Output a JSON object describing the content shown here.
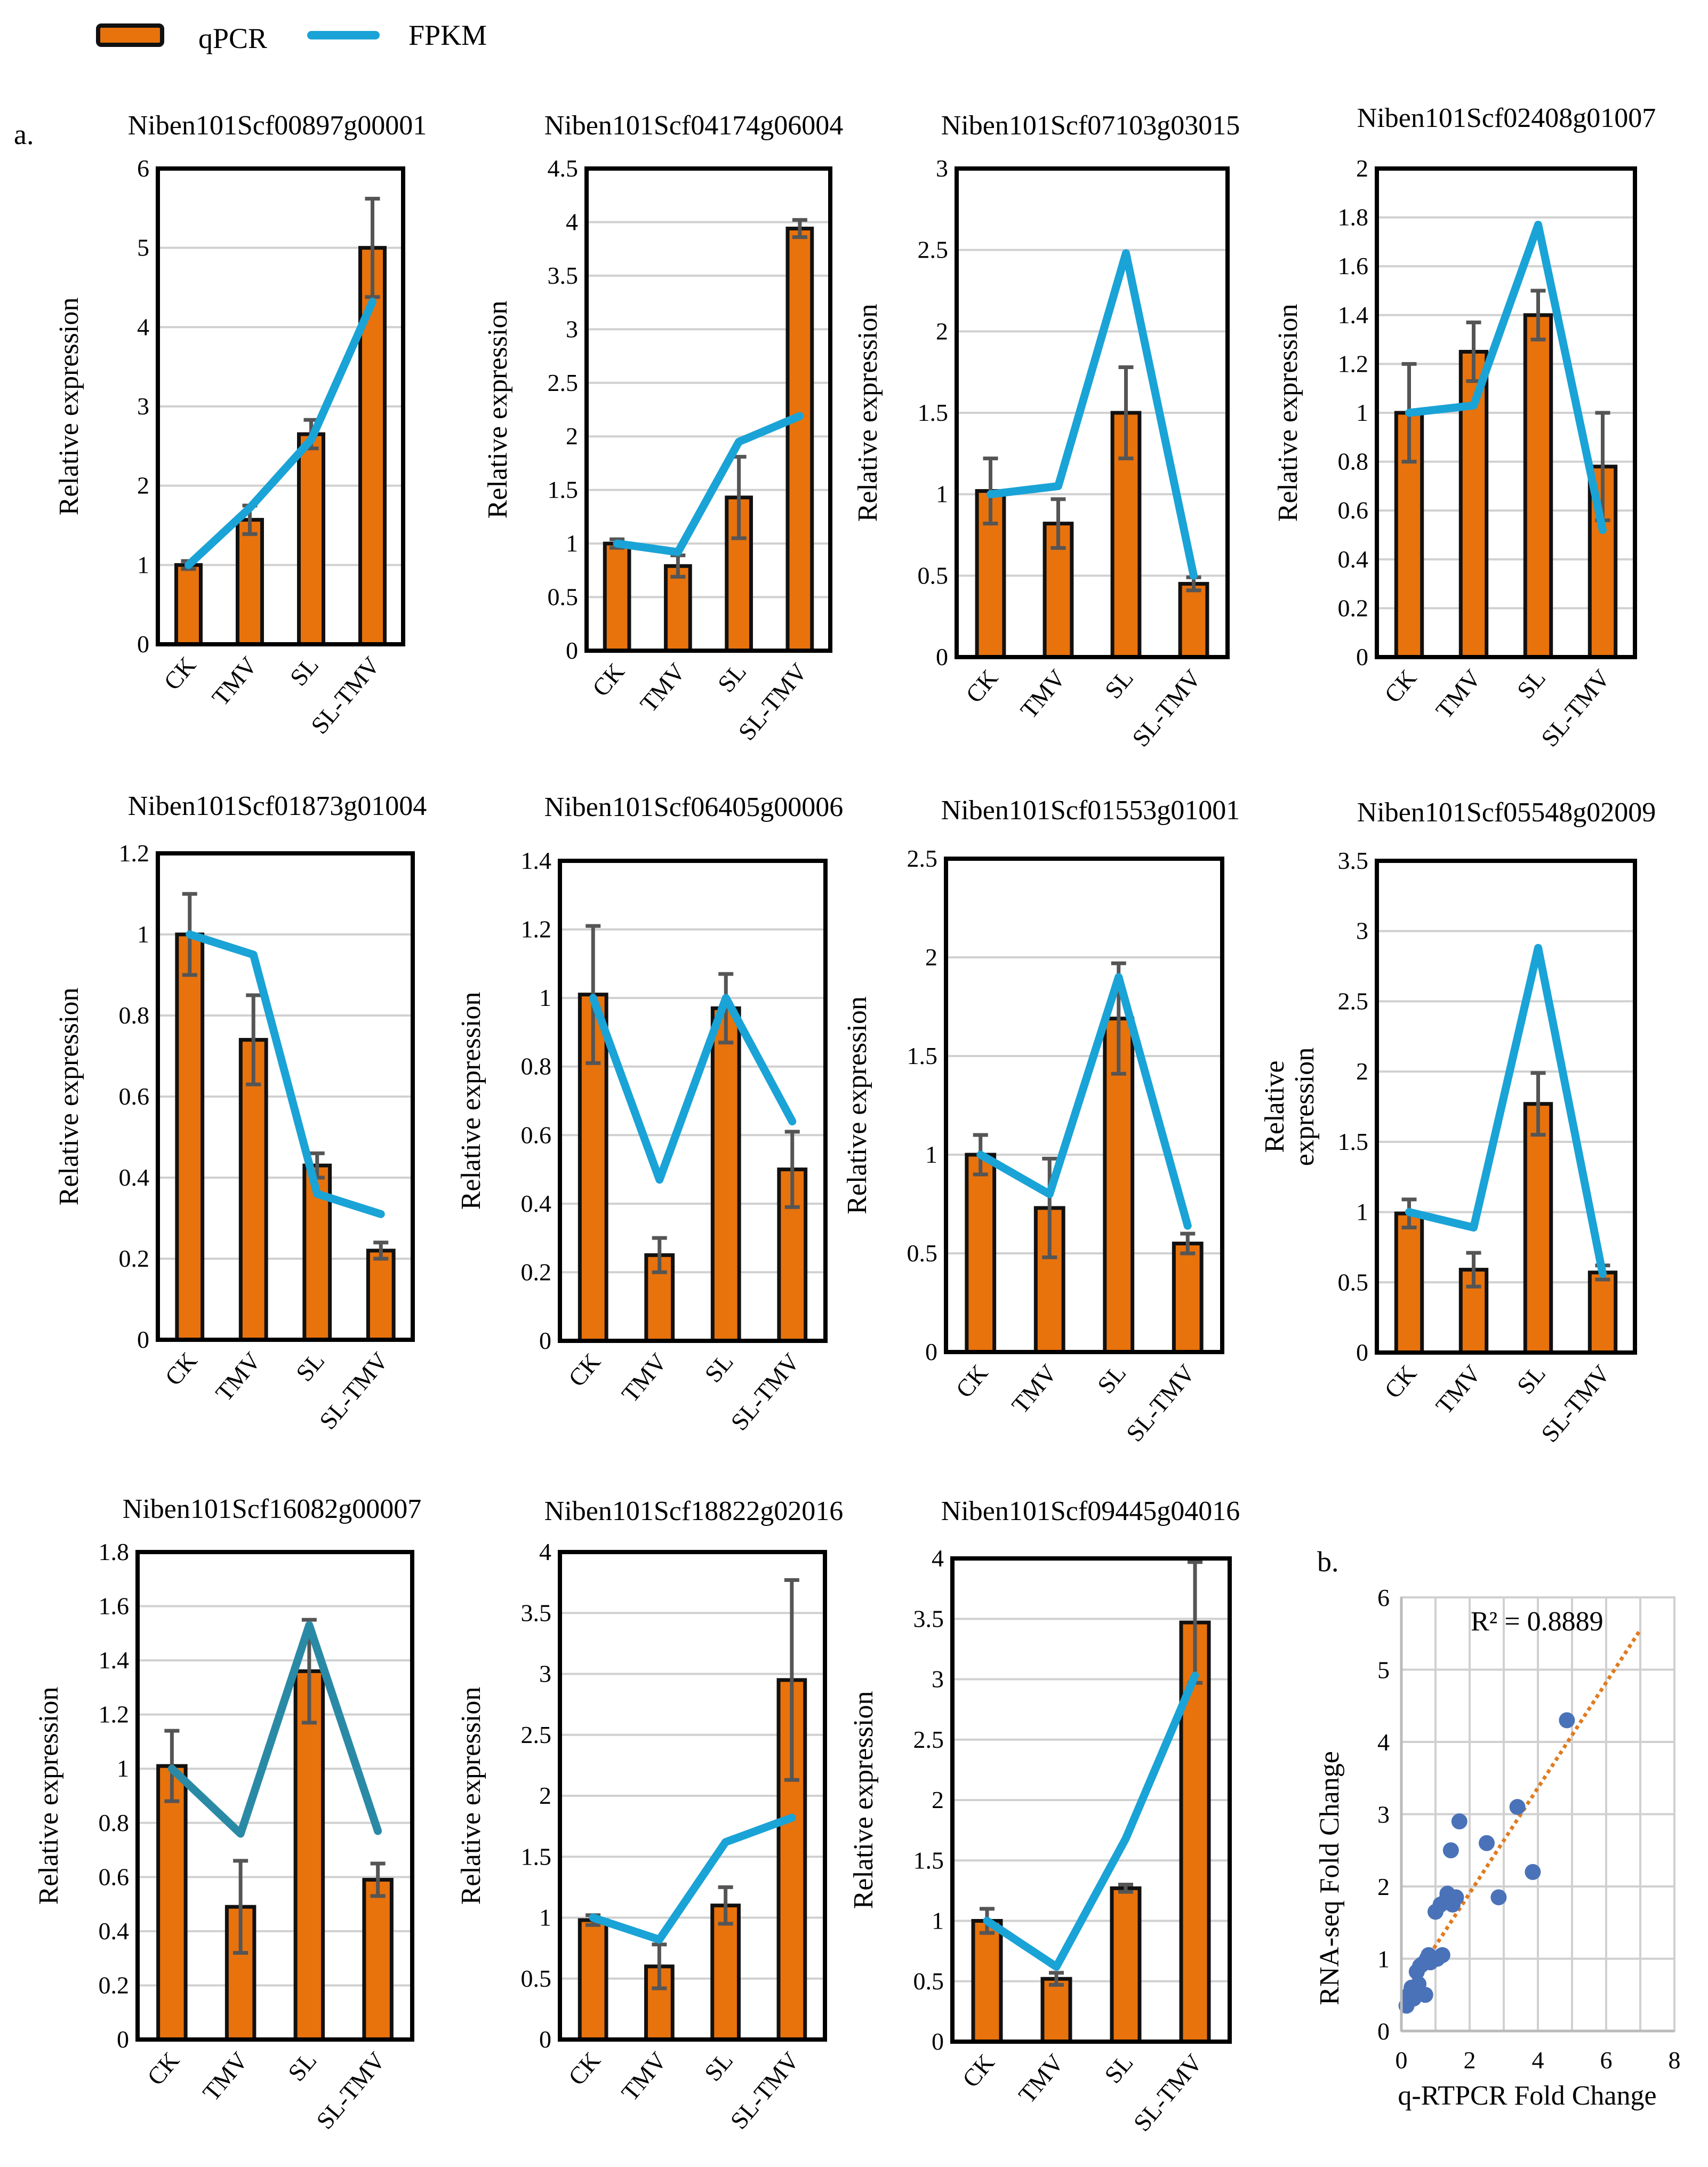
{
  "legend": {
    "items": [
      {
        "label": "qPCR",
        "type": "bar",
        "color": "#e8720c"
      },
      {
        "label": "FPKM",
        "type": "line",
        "color": "#1aa3d6"
      }
    ]
  },
  "panel_a_label": "a.",
  "panel_b_label": "b.",
  "categories": [
    "CK",
    "TMV",
    "SL",
    "SL-TMV"
  ],
  "chart_data": [
    {
      "type": "bar",
      "title": "Niben101Scf00897g00001",
      "ylabel": "Relative expression",
      "ylim": [
        0,
        6
      ],
      "ystep": 1,
      "yticks": [
        "0",
        "1",
        "2",
        "3",
        "4",
        "5",
        "6"
      ],
      "series": [
        {
          "name": "qPCR",
          "values": [
            1.0,
            1.57,
            2.65,
            5.0
          ],
          "errors": [
            0.05,
            0.18,
            0.18,
            0.62
          ]
        },
        {
          "name": "FPKM",
          "values": [
            1.0,
            1.72,
            2.58,
            4.32
          ]
        }
      ]
    },
    {
      "type": "bar",
      "title": "Niben101Scf04174g06004",
      "ylabel": "Relative expression",
      "ylim": [
        0,
        4.5
      ],
      "ystep": 0.5,
      "yticks": [
        "0",
        "0.5",
        "1",
        "1.5",
        "2",
        "2.5",
        "3",
        "3.5",
        "4",
        "4.5"
      ],
      "series": [
        {
          "name": "qPCR",
          "values": [
            1.0,
            0.79,
            1.43,
            3.94
          ],
          "errors": [
            0.04,
            0.1,
            0.38,
            0.08
          ]
        },
        {
          "name": "FPKM",
          "values": [
            1.0,
            0.92,
            1.95,
            2.19
          ]
        }
      ]
    },
    {
      "type": "bar",
      "title": "Niben101Scf07103g03015",
      "ylabel": "Relative expression",
      "ylim": [
        0,
        3
      ],
      "ystep": 0.5,
      "yticks": [
        "0",
        "0.5",
        "1",
        "1.5",
        "2",
        "2.5",
        "3"
      ],
      "series": [
        {
          "name": "qPCR",
          "values": [
            1.02,
            0.82,
            1.5,
            0.45
          ],
          "errors": [
            0.2,
            0.15,
            0.28,
            0.04
          ]
        },
        {
          "name": "FPKM",
          "values": [
            1.0,
            1.05,
            2.48,
            0.5
          ]
        }
      ]
    },
    {
      "type": "bar",
      "title": "Niben101Scf02408g01007",
      "ylabel": "Relative expression",
      "ylim": [
        0,
        2
      ],
      "ystep": 0.2,
      "yticks": [
        "0",
        "0.2",
        "0.4",
        "0.6",
        "0.8",
        "1",
        "1.2",
        "1.4",
        "1.6",
        "1.8",
        "2"
      ],
      "series": [
        {
          "name": "qPCR",
          "values": [
            1.0,
            1.25,
            1.4,
            0.78
          ],
          "errors": [
            0.2,
            0.12,
            0.1,
            0.22
          ]
        },
        {
          "name": "FPKM",
          "values": [
            1.0,
            1.03,
            1.77,
            0.52
          ]
        }
      ]
    },
    {
      "type": "bar",
      "title": "Niben101Scf01873g01004",
      "ylabel": "Relative expression",
      "ylim": [
        0,
        1.2
      ],
      "ystep": 0.2,
      "yticks": [
        "0",
        "0.2",
        "0.4",
        "0.6",
        "0.8",
        "1",
        "1.2"
      ],
      "series": [
        {
          "name": "qPCR",
          "values": [
            1.0,
            0.74,
            0.43,
            0.22
          ],
          "errors": [
            0.1,
            0.11,
            0.03,
            0.02
          ]
        },
        {
          "name": "FPKM",
          "values": [
            1.0,
            0.95,
            0.36,
            0.31
          ]
        }
      ]
    },
    {
      "type": "bar",
      "title": "Niben101Scf06405g00006",
      "ylabel": "Relative expression",
      "ylim": [
        0,
        1.4
      ],
      "ystep": 0.2,
      "yticks": [
        "0",
        "0.2",
        "0.4",
        "0.6",
        "0.8",
        "1",
        "1.2",
        "1.4"
      ],
      "series": [
        {
          "name": "qPCR",
          "values": [
            1.01,
            0.25,
            0.97,
            0.5
          ],
          "errors": [
            0.2,
            0.05,
            0.1,
            0.11
          ]
        },
        {
          "name": "FPKM",
          "values": [
            1.0,
            0.47,
            1.0,
            0.64
          ]
        }
      ]
    },
    {
      "type": "bar",
      "title": "Niben101Scf01553g01001",
      "ylabel": "Relative expression",
      "ylim": [
        0,
        2.5
      ],
      "ystep": 0.5,
      "yticks": [
        "0",
        "0.5",
        "1",
        "1.5",
        "2",
        "2.5"
      ],
      "series": [
        {
          "name": "qPCR",
          "values": [
            1.0,
            0.73,
            1.69,
            0.55
          ],
          "errors": [
            0.1,
            0.25,
            0.28,
            0.05
          ]
        },
        {
          "name": "FPKM",
          "values": [
            1.0,
            0.8,
            1.9,
            0.64
          ]
        }
      ]
    },
    {
      "type": "bar",
      "title": "Niben101Scf05548g02009",
      "ylabel": "Relative expression",
      "ylabel_wrapped": true,
      "ylim": [
        0,
        3.5
      ],
      "ystep": 0.5,
      "yticks": [
        "0",
        "0.5",
        "1",
        "1.5",
        "2",
        "2.5",
        "3",
        "3.5"
      ],
      "series": [
        {
          "name": "qPCR",
          "values": [
            0.99,
            0.59,
            1.77,
            0.57
          ],
          "errors": [
            0.1,
            0.12,
            0.22,
            0.05
          ]
        },
        {
          "name": "FPKM",
          "values": [
            1.0,
            0.89,
            2.88,
            0.56
          ]
        }
      ]
    },
    {
      "type": "bar",
      "title": "Niben101Scf16082g00007",
      "ylabel": "Relative expression",
      "ylim": [
        0,
        1.8
      ],
      "ystep": 0.2,
      "yticks": [
        "0",
        "0.2",
        "0.4",
        "0.6",
        "0.8",
        "1",
        "1.2",
        "1.4",
        "1.6",
        "1.8"
      ],
      "series": [
        {
          "name": "qPCR",
          "values": [
            1.01,
            0.49,
            1.36,
            0.59
          ],
          "errors": [
            0.13,
            0.17,
            0.19,
            0.06
          ]
        },
        {
          "name": "FPKM",
          "values": [
            1.0,
            0.76,
            1.53,
            0.77
          ]
        }
      ]
    },
    {
      "type": "bar",
      "title": "Niben101Scf18822g02016",
      "ylabel": "Relative expression",
      "ylim": [
        0,
        4
      ],
      "ystep": 0.5,
      "yticks": [
        "0",
        "0.5",
        "1",
        "1.5",
        "2",
        "2.5",
        "3",
        "3.5",
        "4"
      ],
      "series": [
        {
          "name": "qPCR",
          "values": [
            0.98,
            0.6,
            1.1,
            2.95
          ],
          "errors": [
            0.04,
            0.18,
            0.15,
            0.82
          ]
        },
        {
          "name": "FPKM",
          "values": [
            1.0,
            0.82,
            1.62,
            1.82
          ]
        }
      ]
    },
    {
      "type": "bar",
      "title": "Niben101Scf09445g04016",
      "ylabel": "Relative expression",
      "ylim": [
        0,
        4
      ],
      "ystep": 0.5,
      "yticks": [
        "0",
        "0.5",
        "1",
        "1.5",
        "2",
        "2.5",
        "3",
        "3.5",
        "4"
      ],
      "series": [
        {
          "name": "qPCR",
          "values": [
            1.0,
            0.52,
            1.27,
            3.47
          ],
          "errors": [
            0.1,
            0.05,
            0.03,
            0.5
          ]
        },
        {
          "name": "FPKM",
          "values": [
            1.0,
            0.62,
            1.68,
            3.03
          ]
        }
      ]
    },
    {
      "type": "scatter",
      "title": "",
      "xlabel": "q-RTPCR Fold Change",
      "ylabel": "RNA-seq Fold Change",
      "xlim": [
        0,
        8
      ],
      "ylim": [
        0,
        6
      ],
      "xticks": [
        "0",
        "2",
        "4",
        "6",
        "8"
      ],
      "yticks": [
        "0",
        "1",
        "2",
        "3",
        "4",
        "5",
        "6"
      ],
      "annotation": "R² = 0.8889",
      "trendline": {
        "x": [
          0,
          7
        ],
        "y": [
          0.45,
          5.55
        ]
      },
      "points": [
        {
          "x": 0.15,
          "y": 0.35
        },
        {
          "x": 0.22,
          "y": 0.5
        },
        {
          "x": 0.3,
          "y": 0.6
        },
        {
          "x": 0.36,
          "y": 0.45
        },
        {
          "x": 0.45,
          "y": 0.82
        },
        {
          "x": 0.5,
          "y": 0.65
        },
        {
          "x": 0.55,
          "y": 0.9
        },
        {
          "x": 0.6,
          "y": 0.92
        },
        {
          "x": 0.7,
          "y": 0.5
        },
        {
          "x": 0.75,
          "y": 1.0
        },
        {
          "x": 0.8,
          "y": 1.05
        },
        {
          "x": 0.85,
          "y": 0.95
        },
        {
          "x": 1.0,
          "y": 1.65
        },
        {
          "x": 1.05,
          "y": 1.0
        },
        {
          "x": 1.15,
          "y": 1.75
        },
        {
          "x": 1.2,
          "y": 1.05
        },
        {
          "x": 1.3,
          "y": 1.8
        },
        {
          "x": 1.35,
          "y": 1.9
        },
        {
          "x": 1.45,
          "y": 2.5
        },
        {
          "x": 1.5,
          "y": 1.75
        },
        {
          "x": 1.6,
          "y": 1.85
        },
        {
          "x": 1.7,
          "y": 2.9
        },
        {
          "x": 2.5,
          "y": 2.6
        },
        {
          "x": 2.85,
          "y": 1.85
        },
        {
          "x": 3.4,
          "y": 3.1
        },
        {
          "x": 3.85,
          "y": 2.2
        },
        {
          "x": 4.85,
          "y": 4.3
        }
      ]
    }
  ]
}
